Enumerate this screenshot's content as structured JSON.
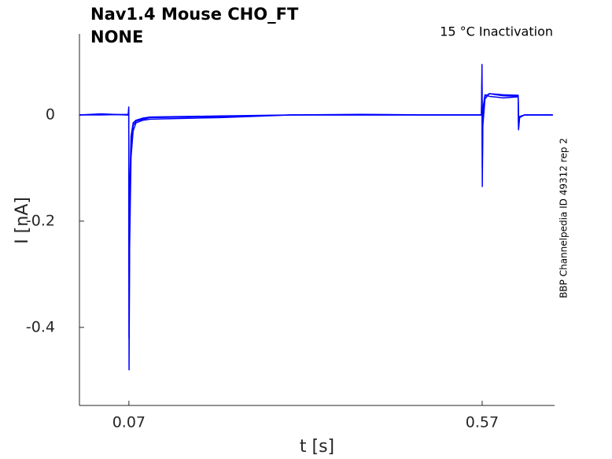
{
  "chart_data": {
    "type": "line",
    "title": "Nav1.4  Mouse  CHO_FT",
    "subtitle": "NONE",
    "annotation": "15 °C  Inactivation",
    "side_note": "BBP Channelpedia ID 49312 rep 2",
    "x_label": "t [s]",
    "y_label": "I [nA]",
    "x": [
      0,
      0.03,
      0.069,
      0.0698,
      0.0702,
      0.071,
      0.073,
      0.076,
      0.08,
      0.09,
      0.1,
      0.2,
      0.3,
      0.4,
      0.5,
      0.569,
      0.5698,
      0.5702,
      0.571,
      0.574,
      0.58,
      0.6,
      0.621,
      0.6215,
      0.623,
      0.63,
      0.67
    ],
    "series": [
      {
        "color": "#0000ff",
        "values": [
          0,
          0.002,
          0,
          0.015,
          -0.48,
          -0.25,
          -0.08,
          -0.03,
          -0.015,
          -0.01,
          -0.008,
          -0.005,
          0,
          0,
          0,
          0,
          0.095,
          -0.135,
          -0.02,
          0.03,
          0.04,
          0.038,
          0.037,
          -0.028,
          -0.005,
          0,
          0
        ]
      },
      {
        "color": "#0000ff",
        "values": [
          0,
          0,
          0.001,
          0.01,
          -0.42,
          -0.2,
          -0.06,
          -0.02,
          -0.012,
          -0.008,
          -0.005,
          -0.003,
          0,
          0.001,
          0,
          0,
          0.08,
          -0.1,
          0,
          0.035,
          0.04,
          0.036,
          0.035,
          -0.025,
          -0.004,
          0,
          0
        ]
      },
      {
        "color": "#0000ff",
        "values": [
          0,
          0.001,
          0,
          0.005,
          -0.3,
          -0.15,
          -0.04,
          -0.015,
          -0.01,
          -0.006,
          -0.004,
          -0.002,
          0,
          0,
          0,
          0,
          0.06,
          -0.06,
          0.01,
          0.038,
          0.035,
          0.032,
          0.034,
          -0.02,
          -0.003,
          0,
          0
        ]
      }
    ],
    "xlim": [
      0,
      0.6725
    ],
    "ylim": [
      -0.547,
      0.1526
    ],
    "xticks": [
      0.07,
      0.57
    ],
    "yticks": [
      0,
      -0.2,
      -0.4
    ],
    "grid": false
  }
}
